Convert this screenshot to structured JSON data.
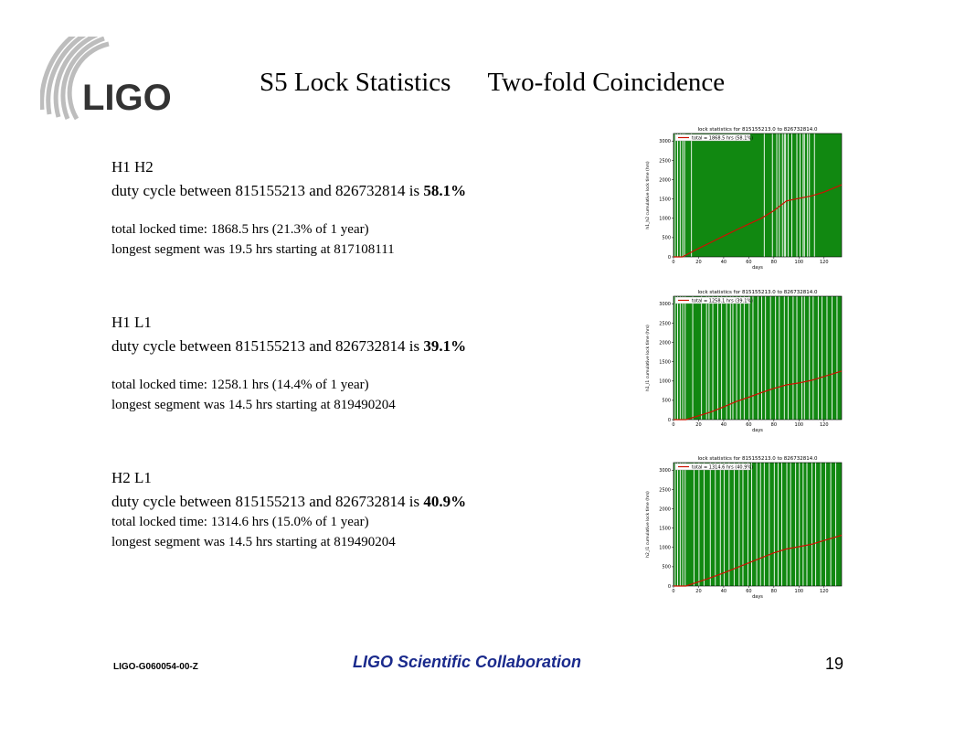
{
  "slide": {
    "title_left": "S5 Lock Statistics",
    "title_right": "Two-fold Coincidence",
    "logo_text": "LIGO",
    "footer_doc": "LIGO-G060054-00-Z",
    "footer_org": "LIGO Scientific Collaboration",
    "page_number": "19",
    "colors": {
      "band": "#118811",
      "cumulative_line": "#cc1100",
      "footer_org": "#1a2a8c"
    }
  },
  "pairs": [
    {
      "label": "H1 H2",
      "duty_prefix": "duty cycle between 815155213 and 826732814 is ",
      "duty_value": "58.1%",
      "total_locked": "total locked time: 1868.5 hrs (21.3% of 1 year)",
      "longest": "longest segment was 19.5 hrs starting at 817108111"
    },
    {
      "label": "H1 L1",
      "duty_prefix": "duty cycle between 815155213 and 826732814 is ",
      "duty_value": "39.1%",
      "total_locked": "total locked time: 1258.1 hrs (14.4% of 1 year)",
      "longest": "longest segment was 14.5 hrs starting at 819490204"
    },
    {
      "label": "H2 L1",
      "duty_prefix": "duty cycle between 815155213 and 826732814 is ",
      "duty_value": "40.9%",
      "total_locked": "total locked time: 1314.6 hrs (15.0% of 1 year)",
      "longest": "longest segment was 14.5 hrs starting at 819490204"
    }
  ],
  "chart_data": [
    {
      "type": "line",
      "title": "lock statistics for 815155213.0 to 826732814.0",
      "xlabel": "days",
      "ylabel": "h1_h2 cumulative lock time (hrs)",
      "legend": "total = 1868.5 hrs (58.1%)",
      "legend_position": "top-left",
      "xlim": [
        0,
        134
      ],
      "ylim": [
        0,
        3200
      ],
      "xticks": [
        "0",
        "20",
        "40",
        "60",
        "80",
        "100",
        "120"
      ],
      "yticks": [
        "0",
        "500",
        "1000",
        "1500",
        "2000",
        "2500",
        "3000"
      ],
      "x": [
        0,
        7,
        10,
        20,
        30,
        40,
        50,
        60,
        70,
        80,
        90,
        100,
        110,
        120,
        134
      ],
      "y": [
        0,
        0,
        50,
        220,
        380,
        540,
        700,
        850,
        1000,
        1200,
        1450,
        1520,
        1580,
        1680,
        1868.5
      ],
      "gaps": [
        1,
        3,
        5,
        7,
        8.5,
        14,
        72,
        78.5,
        82,
        84,
        86.5,
        88,
        89,
        91,
        94,
        98,
        100.5,
        103,
        104,
        106.5,
        108,
        112
      ],
      "full_gap_from": 113
    },
    {
      "type": "line",
      "title": "lock statistics for 815155213.0 to 826732814.0",
      "xlabel": "days",
      "ylabel": "h1_l1 cumulative lock time (hrs)",
      "legend": "total = 1258.1 hrs (39.1%)",
      "legend_position": "top-left",
      "xlim": [
        0,
        134
      ],
      "ylim": [
        0,
        3200
      ],
      "xticks": [
        "0",
        "20",
        "40",
        "60",
        "80",
        "100",
        "120"
      ],
      "yticks": [
        "0",
        "500",
        "1000",
        "1500",
        "2000",
        "2500",
        "3000"
      ],
      "x": [
        0,
        10,
        20,
        30,
        40,
        50,
        60,
        70,
        80,
        90,
        100,
        110,
        120,
        134
      ],
      "y": [
        0,
        0,
        100,
        200,
        330,
        470,
        580,
        700,
        810,
        900,
        950,
        1020,
        1120,
        1258.1
      ],
      "gaps": [
        1,
        3,
        5,
        7,
        9,
        15,
        22,
        26,
        28,
        31,
        35,
        38,
        42,
        45,
        47,
        50,
        53,
        56,
        60,
        63,
        67,
        70,
        73,
        77,
        81,
        84,
        88,
        91,
        95,
        98,
        102,
        104,
        108,
        111,
        115,
        118,
        122,
        126,
        130
      ]
    },
    {
      "type": "line",
      "title": "lock statistics for 815155213.0 to 826732814.0",
      "xlabel": "days",
      "ylabel": "h2_l1 cumulative lock time (hrs)",
      "legend": "total = 1314.6 hrs (40.9%)",
      "legend_position": "top-left",
      "xlim": [
        0,
        134
      ],
      "ylim": [
        0,
        3200
      ],
      "xticks": [
        "0",
        "20",
        "40",
        "60",
        "80",
        "100",
        "120"
      ],
      "yticks": [
        "0",
        "500",
        "1000",
        "1500",
        "2000",
        "2500",
        "3000"
      ],
      "x": [
        0,
        10,
        20,
        30,
        40,
        50,
        60,
        70,
        80,
        90,
        100,
        110,
        120,
        134
      ],
      "y": [
        0,
        0,
        110,
        220,
        340,
        470,
        600,
        730,
        860,
        960,
        1020,
        1080,
        1180,
        1314.6
      ],
      "gaps": [
        1,
        3,
        5,
        7,
        9,
        16,
        20,
        24,
        29,
        33,
        37,
        40,
        44,
        48,
        52,
        55,
        59,
        62,
        66,
        69,
        72,
        76,
        80,
        83,
        86,
        90,
        93,
        97,
        100,
        103,
        106,
        110,
        113,
        117,
        121,
        125,
        129
      ]
    }
  ]
}
